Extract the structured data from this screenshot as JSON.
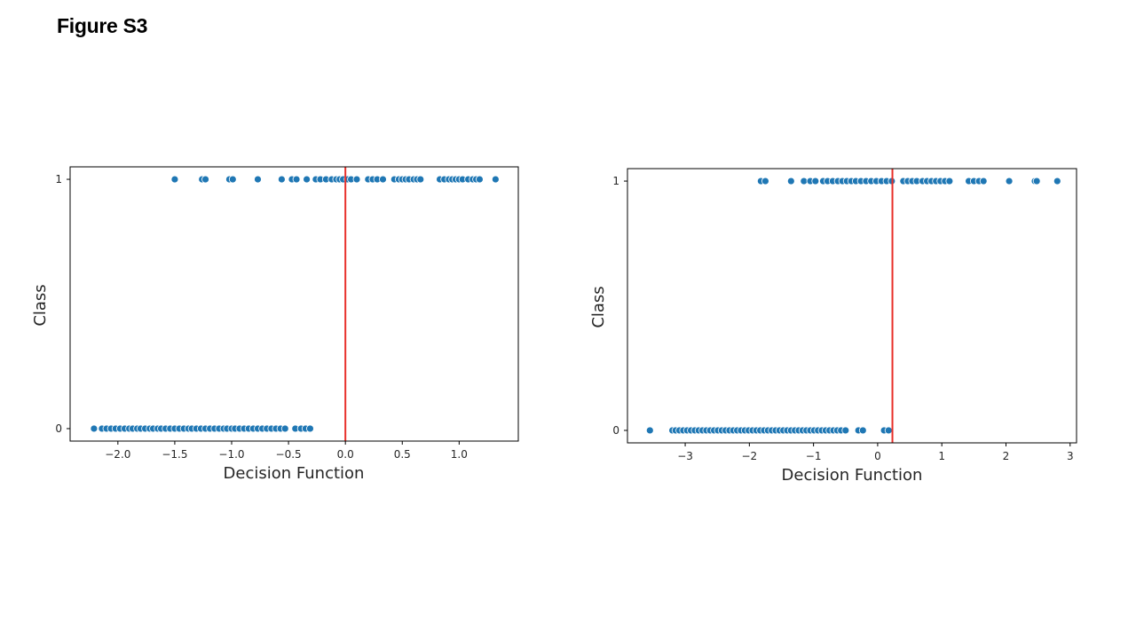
{
  "page": {
    "title": "Figure S3"
  },
  "colors": {
    "point": "#1f77b4",
    "point_edge": "#ffffff",
    "threshold": "#e8302a",
    "axes": "#000000"
  },
  "chart_data": [
    {
      "type": "scatter",
      "xlabel": "Decision Function",
      "ylabel": "Class",
      "xlim": [
        -2.42,
        1.52
      ],
      "ylim": [
        -0.05,
        1.05
      ],
      "xticks": [
        -2.0,
        -1.5,
        -1.0,
        -0.5,
        0.0,
        0.5,
        1.0
      ],
      "xticklabels": [
        "−2.0",
        "−1.5",
        "−1.0",
        "−0.5",
        "0.0",
        "0.5",
        "1.0"
      ],
      "yticks": [
        0,
        1
      ],
      "yticklabels": [
        "0",
        "1"
      ],
      "threshold_x": 0.0,
      "series": [
        {
          "class": 1,
          "x": [
            -1.5,
            -1.26,
            -1.23,
            -1.02,
            -0.99,
            -0.77,
            -0.56,
            -0.47,
            -0.43,
            -0.34,
            -0.26,
            -0.22,
            -0.17,
            -0.12,
            -0.08,
            -0.05,
            -0.02,
            0.02,
            0.05,
            0.1,
            0.2,
            0.24,
            0.28,
            0.33,
            0.43,
            0.47,
            0.5,
            0.53,
            0.56,
            0.6,
            0.63,
            0.66,
            0.83,
            0.87,
            0.91,
            0.94,
            0.97,
            1.0,
            1.03,
            1.08,
            1.12,
            1.15,
            1.18,
            1.32
          ]
        },
        {
          "class": 0,
          "x": [
            -2.21,
            -2.14,
            -2.1,
            -2.06,
            -2.02,
            -1.98,
            -1.94,
            -1.9,
            -1.87,
            -1.83,
            -1.8,
            -1.76,
            -1.72,
            -1.69,
            -1.65,
            -1.62,
            -1.58,
            -1.54,
            -1.5,
            -1.46,
            -1.42,
            -1.38,
            -1.35,
            -1.31,
            -1.27,
            -1.23,
            -1.19,
            -1.15,
            -1.11,
            -1.07,
            -1.04,
            -1.0,
            -0.97,
            -0.93,
            -0.89,
            -0.85,
            -0.81,
            -0.77,
            -0.73,
            -0.69,
            -0.65,
            -0.61,
            -0.57,
            -0.53,
            -0.44,
            -0.39,
            -0.35,
            -0.31
          ]
        }
      ]
    },
    {
      "type": "scatter",
      "xlabel": "Decision Function",
      "ylabel": "Class",
      "xlim": [
        -3.9,
        3.1
      ],
      "ylim": [
        -0.05,
        1.05
      ],
      "xticks": [
        -3,
        -2,
        -1,
        0,
        1,
        2,
        3
      ],
      "xticklabels": [
        "−3",
        "−2",
        "−1",
        "0",
        "1",
        "2",
        "3"
      ],
      "yticks": [
        0,
        1
      ],
      "yticklabels": [
        "0",
        "1"
      ],
      "threshold_x": 0.23,
      "series": [
        {
          "class": 1,
          "x": [
            -1.82,
            -1.75,
            -1.35,
            -1.15,
            -1.05,
            -0.97,
            -0.85,
            -0.78,
            -0.7,
            -0.62,
            -0.55,
            -0.48,
            -0.41,
            -0.34,
            -0.26,
            -0.18,
            -0.1,
            -0.02,
            0.06,
            0.14,
            0.22,
            0.4,
            0.47,
            0.54,
            0.61,
            0.7,
            0.77,
            0.84,
            0.91,
            0.98,
            1.05,
            1.12,
            1.42,
            1.5,
            1.58,
            1.65,
            2.05,
            2.45,
            2.48,
            2.8
          ]
        },
        {
          "class": 0,
          "x": [
            -3.55,
            -3.2,
            -3.15,
            -3.09,
            -3.03,
            -2.97,
            -2.91,
            -2.85,
            -2.79,
            -2.73,
            -2.67,
            -2.61,
            -2.55,
            -2.49,
            -2.43,
            -2.37,
            -2.31,
            -2.25,
            -2.19,
            -2.13,
            -2.07,
            -2.01,
            -1.95,
            -1.89,
            -1.83,
            -1.77,
            -1.71,
            -1.65,
            -1.59,
            -1.53,
            -1.47,
            -1.41,
            -1.35,
            -1.29,
            -1.23,
            -1.17,
            -1.11,
            -1.05,
            -0.99,
            -0.93,
            -0.87,
            -0.81,
            -0.75,
            -0.69,
            -0.63,
            -0.57,
            -0.5,
            -0.3,
            -0.23,
            0.1,
            0.17
          ]
        }
      ]
    }
  ]
}
